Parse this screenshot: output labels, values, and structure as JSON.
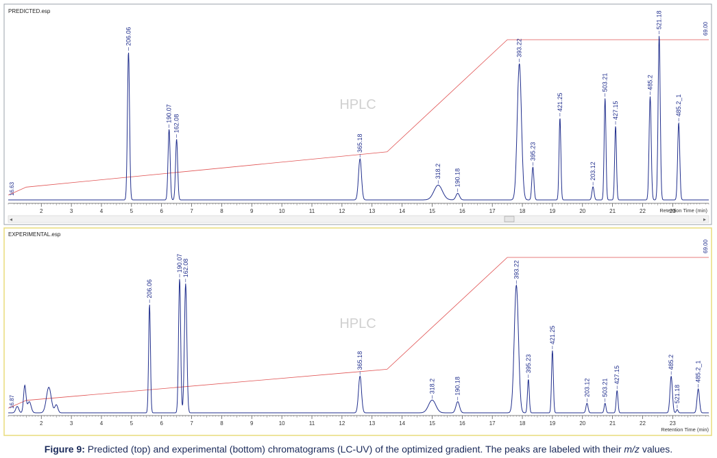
{
  "caption": {
    "label": "Figure 9:",
    "text_before": " Predicted (top) and experimental (bottom) chromatograms (LC-UV) of the optimized gradient. The peaks are labeled with their ",
    "italic": "m/z",
    "text_after": " values."
  },
  "colors": {
    "trace": "#1f2d8c",
    "gradient": "#e05050",
    "frame_top": "#9aa0a8",
    "frame_bottom": "#e8dc7a",
    "watermark": "#d0d0d0"
  },
  "chart_data": [
    {
      "type": "line",
      "title": "PREDICTED.esp",
      "watermark": "HPLC",
      "xlabel": "Retention Time (min)",
      "xlim": [
        0.9,
        24.2
      ],
      "xticks": [
        2,
        3,
        4,
        5,
        6,
        7,
        8,
        9,
        10,
        11,
        12,
        13,
        14,
        15,
        16,
        17,
        18,
        19,
        20,
        21,
        22,
        23
      ],
      "gradient": {
        "x": [
          0.9,
          1.5,
          13.5,
          17.5,
          24.2
        ],
        "y": [
          0.03,
          0.08,
          0.3,
          1.0,
          1.0
        ],
        "start_label": "16.63",
        "end_label": "69.00"
      },
      "peaks": [
        {
          "label": "206.06",
          "rt": 4.9,
          "height": 0.9,
          "width": 0.035
        },
        {
          "label": "190.07",
          "rt": 6.25,
          "height": 0.43,
          "width": 0.035
        },
        {
          "label": "162.08",
          "rt": 6.5,
          "height": 0.37,
          "width": 0.035
        },
        {
          "label": "365.18",
          "rt": 12.6,
          "height": 0.25,
          "width": 0.05
        },
        {
          "label": "318.2",
          "rt": 15.2,
          "height": 0.09,
          "width": 0.14
        },
        {
          "label": "190.18",
          "rt": 15.85,
          "height": 0.04,
          "width": 0.06
        },
        {
          "label": "393.22",
          "rt": 17.9,
          "height": 0.83,
          "width": 0.07
        },
        {
          "label": "395.23",
          "rt": 18.35,
          "height": 0.2,
          "width": 0.035
        },
        {
          "label": "421.25",
          "rt": 19.25,
          "height": 0.5,
          "width": 0.03
        },
        {
          "label": "203.12",
          "rt": 20.35,
          "height": 0.08,
          "width": 0.035
        },
        {
          "label": "503.21",
          "rt": 20.75,
          "height": 0.62,
          "width": 0.03
        },
        {
          "label": "427.15",
          "rt": 21.1,
          "height": 0.45,
          "width": 0.03
        },
        {
          "label": "485.2",
          "rt": 22.25,
          "height": 0.63,
          "width": 0.035
        },
        {
          "label": "521.18",
          "rt": 22.55,
          "height": 1.0,
          "width": 0.035
        },
        {
          "label": "485.2_1",
          "rt": 23.2,
          "height": 0.47,
          "width": 0.035
        }
      ]
    },
    {
      "type": "line",
      "title": "EXPERIMENTAL.esp",
      "watermark": "HPLC",
      "xlabel": "Retention Time (min)",
      "xlim": [
        0.9,
        24.2
      ],
      "xticks": [
        2,
        3,
        4,
        5,
        6,
        7,
        8,
        9,
        10,
        11,
        12,
        13,
        14,
        15,
        16,
        17,
        18,
        19,
        20,
        21,
        22,
        23
      ],
      "gradient": {
        "x": [
          0.9,
          1.5,
          13.5,
          17.5,
          24.2
        ],
        "y": [
          0.03,
          0.08,
          0.28,
          1.0,
          1.0
        ],
        "start_label": "16.87",
        "end_label": "69.00"
      },
      "peaks": [
        {
          "label": "206.06",
          "rt": 5.6,
          "height": 0.68,
          "width": 0.03
        },
        {
          "label": "190.07",
          "rt": 6.6,
          "height": 0.84,
          "width": 0.035
        },
        {
          "label": "162.08",
          "rt": 6.8,
          "height": 0.81,
          "width": 0.04
        },
        {
          "label": "365.18",
          "rt": 12.6,
          "height": 0.23,
          "width": 0.05
        },
        {
          "label": "318.2",
          "rt": 15.0,
          "height": 0.08,
          "width": 0.12
        },
        {
          "label": "190.18",
          "rt": 15.85,
          "height": 0.07,
          "width": 0.06
        },
        {
          "label": "393.22",
          "rt": 17.8,
          "height": 0.8,
          "width": 0.07
        },
        {
          "label": "395.23",
          "rt": 18.2,
          "height": 0.21,
          "width": 0.03
        },
        {
          "label": "421.25",
          "rt": 19.0,
          "height": 0.39,
          "width": 0.03
        },
        {
          "label": "203.12",
          "rt": 20.15,
          "height": 0.06,
          "width": 0.035
        },
        {
          "label": "503.21",
          "rt": 20.75,
          "height": 0.06,
          "width": 0.03
        },
        {
          "label": "427.15",
          "rt": 21.15,
          "height": 0.14,
          "width": 0.03
        },
        {
          "label": "485.2",
          "rt": 22.95,
          "height": 0.23,
          "width": 0.04
        },
        {
          "label": "521.18",
          "rt": 23.15,
          "height": 0.02,
          "width": 0.03
        },
        {
          "label": "485.2_1",
          "rt": 23.85,
          "height": 0.15,
          "width": 0.04
        }
      ]
    }
  ]
}
